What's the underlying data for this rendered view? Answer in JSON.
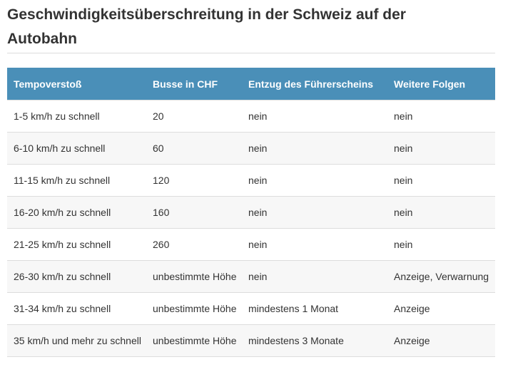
{
  "heading": {
    "line1": "Geschwindigkeitsüberschreitung in der Schweiz auf der",
    "line2": "Autobahn"
  },
  "table": {
    "headers": [
      "Tempoverstoß",
      "Busse in CHF",
      "Entzug des Führerscheins",
      "Weitere Folgen"
    ],
    "rows": [
      [
        "1-5 km/h zu schnell",
        "20",
        "nein",
        "nein"
      ],
      [
        "6-10 km/h zu schnell",
        "60",
        "nein",
        "nein"
      ],
      [
        "11-15 km/h zu schnell",
        "120",
        "nein",
        "nein"
      ],
      [
        "16-20 km/h zu schnell",
        "160",
        "nein",
        "nein"
      ],
      [
        "21-25 km/h zu schnell",
        "260",
        "nein",
        "nein"
      ],
      [
        "26-30 km/h zu schnell",
        "unbestimmte Höhe",
        "nein",
        "Anzeige, Verwarnung"
      ],
      [
        "31-34 km/h zu schnell",
        "unbestimmte Höhe",
        "mindestens 1 Monat",
        "Anzeige"
      ],
      [
        "35 km/h und mehr zu schnell",
        "unbestimmte Höhe",
        "mindestens 3 Monate",
        "Anzeige"
      ]
    ]
  },
  "colors": {
    "header_background": "#4a8fb8",
    "header_text": "#ffffff",
    "stripe_background": "#f7f7f7",
    "border": "#dddddd",
    "text": "#333333"
  }
}
